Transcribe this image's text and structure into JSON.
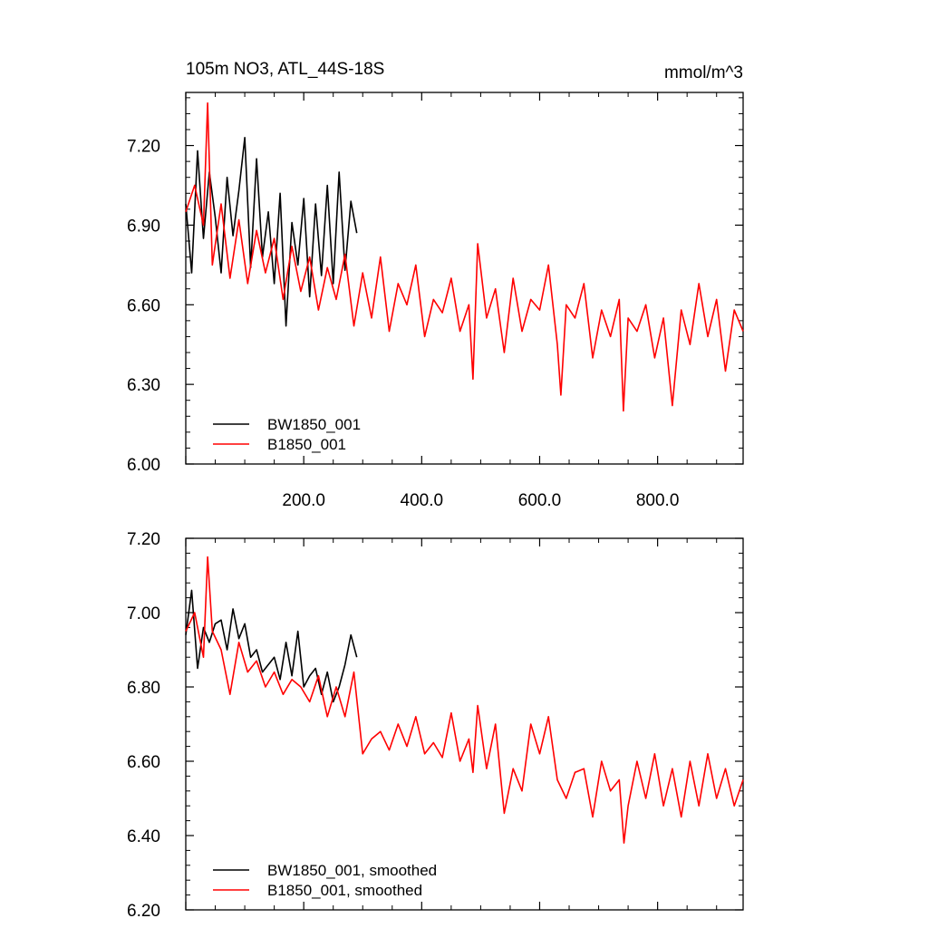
{
  "chart_data": [
    {
      "type": "line",
      "title": "105m NO3, ATL_44S-18S",
      "units": "mmol/m^3",
      "xlabel": "",
      "ylabel": "",
      "xlim": [
        0,
        945
      ],
      "ylim": [
        6.0,
        7.4
      ],
      "x_ticks": [
        200,
        400,
        600,
        800
      ],
      "x_tick_labels": [
        "200.0",
        "400.0",
        "600.0",
        "800.0"
      ],
      "y_ticks": [
        6.0,
        6.3,
        6.6,
        6.9,
        7.2
      ],
      "y_tick_labels": [
        "6.00",
        "6.30",
        "6.60",
        "6.90",
        "7.20"
      ],
      "grid": false,
      "legend_position": "bottom-left",
      "series": [
        {
          "name": "BW1850_001",
          "color": "#000000",
          "x": [
            0,
            10,
            20,
            30,
            40,
            50,
            60,
            70,
            80,
            90,
            100,
            110,
            120,
            130,
            140,
            150,
            160,
            170,
            180,
            190,
            200,
            210,
            220,
            230,
            240,
            250,
            260,
            270,
            280,
            290
          ],
          "values": [
            6.98,
            6.72,
            7.18,
            6.85,
            7.1,
            6.93,
            6.72,
            7.08,
            6.86,
            7.03,
            7.23,
            6.74,
            7.15,
            6.78,
            6.95,
            6.68,
            7.02,
            6.52,
            6.91,
            6.75,
            7.0,
            6.63,
            6.98,
            6.71,
            7.05,
            6.68,
            7.1,
            6.73,
            6.99,
            6.87
          ]
        },
        {
          "name": "B1850_001",
          "color": "#ff0000",
          "x": [
            0,
            15,
            30,
            37,
            45,
            60,
            75,
            90,
            105,
            120,
            135,
            150,
            165,
            180,
            195,
            210,
            225,
            240,
            255,
            270,
            285,
            300,
            315,
            330,
            345,
            360,
            375,
            390,
            405,
            420,
            435,
            450,
            465,
            480,
            487,
            495,
            510,
            525,
            540,
            555,
            570,
            585,
            600,
            615,
            630,
            636,
            645,
            660,
            675,
            690,
            705,
            720,
            735,
            742,
            750,
            765,
            780,
            795,
            810,
            825,
            840,
            855,
            870,
            885,
            900,
            915,
            930,
            945
          ],
          "values": [
            6.95,
            7.05,
            6.9,
            7.36,
            6.75,
            6.98,
            6.7,
            6.92,
            6.68,
            6.88,
            6.72,
            6.85,
            6.62,
            6.82,
            6.65,
            6.78,
            6.58,
            6.74,
            6.62,
            6.79,
            6.52,
            6.72,
            6.55,
            6.78,
            6.5,
            6.68,
            6.6,
            6.75,
            6.48,
            6.62,
            6.57,
            6.7,
            6.5,
            6.6,
            6.32,
            6.83,
            6.55,
            6.66,
            6.42,
            6.7,
            6.5,
            6.62,
            6.58,
            6.75,
            6.45,
            6.26,
            6.6,
            6.55,
            6.68,
            6.4,
            6.58,
            6.48,
            6.62,
            6.2,
            6.55,
            6.5,
            6.6,
            6.4,
            6.55,
            6.22,
            6.58,
            6.45,
            6.68,
            6.48,
            6.62,
            6.35,
            6.58,
            6.5
          ]
        }
      ]
    },
    {
      "type": "line",
      "title": "",
      "xlabel": "",
      "ylabel": "",
      "xlim": [
        0,
        945
      ],
      "ylim": [
        6.2,
        7.2
      ],
      "y_ticks": [
        6.2,
        6.4,
        6.6,
        6.8,
        7.0,
        7.2
      ],
      "y_tick_labels": [
        "6.20",
        "6.40",
        "6.60",
        "6.80",
        "7.00",
        "7.20"
      ],
      "grid": false,
      "legend_position": "bottom-left",
      "series": [
        {
          "name": "BW1850_001, smoothed",
          "color": "#000000",
          "x": [
            0,
            10,
            20,
            30,
            40,
            50,
            60,
            70,
            80,
            90,
            100,
            110,
            120,
            130,
            140,
            150,
            160,
            170,
            180,
            190,
            200,
            210,
            220,
            230,
            240,
            250,
            260,
            270,
            280,
            290
          ],
          "values": [
            6.94,
            7.06,
            6.85,
            6.96,
            6.92,
            6.97,
            6.98,
            6.9,
            7.01,
            6.93,
            6.97,
            6.88,
            6.9,
            6.84,
            6.86,
            6.88,
            6.82,
            6.92,
            6.83,
            6.95,
            6.8,
            6.83,
            6.85,
            6.78,
            6.84,
            6.76,
            6.8,
            6.86,
            6.94,
            6.88
          ]
        },
        {
          "name": "B1850_001, smoothed",
          "color": "#ff0000",
          "x": [
            0,
            15,
            30,
            37,
            45,
            60,
            75,
            90,
            105,
            120,
            135,
            150,
            165,
            180,
            195,
            210,
            225,
            240,
            255,
            270,
            285,
            300,
            315,
            330,
            345,
            360,
            375,
            390,
            405,
            420,
            435,
            450,
            465,
            480,
            487,
            495,
            510,
            525,
            540,
            555,
            570,
            585,
            600,
            615,
            630,
            645,
            660,
            675,
            690,
            705,
            720,
            735,
            743,
            750,
            765,
            780,
            795,
            810,
            825,
            840,
            855,
            870,
            885,
            900,
            915,
            930,
            945
          ],
          "values": [
            6.95,
            7.0,
            6.88,
            7.15,
            6.95,
            6.9,
            6.78,
            6.92,
            6.84,
            6.87,
            6.8,
            6.84,
            6.78,
            6.82,
            6.8,
            6.76,
            6.83,
            6.72,
            6.8,
            6.72,
            6.84,
            6.62,
            6.66,
            6.68,
            6.63,
            6.7,
            6.64,
            6.72,
            6.62,
            6.65,
            6.61,
            6.73,
            6.6,
            6.66,
            6.57,
            6.75,
            6.58,
            6.7,
            6.46,
            6.58,
            6.52,
            6.7,
            6.62,
            6.72,
            6.55,
            6.5,
            6.57,
            6.58,
            6.45,
            6.6,
            6.52,
            6.55,
            6.38,
            6.48,
            6.6,
            6.5,
            6.62,
            6.48,
            6.58,
            6.45,
            6.6,
            6.48,
            6.62,
            6.5,
            6.58,
            6.48,
            6.55
          ]
        }
      ]
    }
  ]
}
